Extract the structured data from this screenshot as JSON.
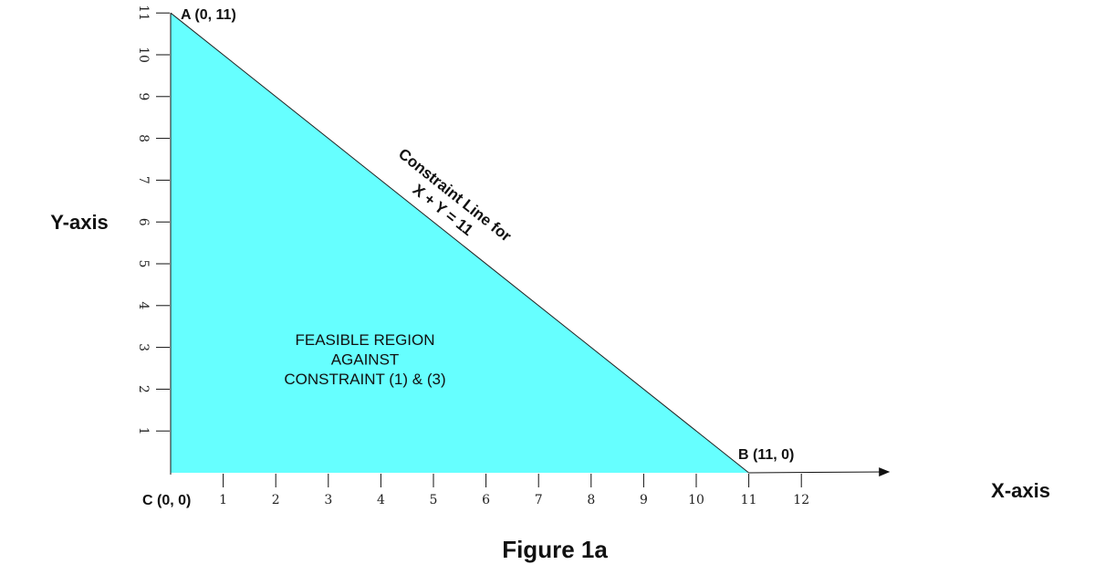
{
  "chart_data": {
    "type": "area",
    "caption": "Figure 1a",
    "xlabel": "X-axis",
    "ylabel": "Y-axis",
    "xlim": [
      0,
      12
    ],
    "ylim": [
      0,
      11
    ],
    "x_ticks": [
      1,
      2,
      3,
      4,
      5,
      6,
      7,
      8,
      9,
      10,
      11,
      12
    ],
    "y_ticks": [
      1,
      2,
      3,
      4,
      5,
      6,
      7,
      8,
      9,
      10,
      11
    ],
    "grid": false,
    "fill_color": "#66FFFF",
    "feasible_region": {
      "vertices": [
        [
          0,
          11
        ],
        [
          11,
          0
        ],
        [
          0,
          0
        ]
      ],
      "label_lines": [
        "FEASIBLE REGION",
        "AGAINST",
        "CONSTRAINT (1) & (3)"
      ]
    },
    "points": [
      {
        "label": "A (0, 11)",
        "x": 0,
        "y": 11
      },
      {
        "label": "B (11, 0)",
        "x": 11,
        "y": 0
      },
      {
        "label": "C (0, 0)",
        "x": 0,
        "y": 0
      }
    ],
    "constraint_line": {
      "from": [
        0,
        11
      ],
      "to": [
        11,
        0
      ],
      "label_lines": [
        "Constraint Line for",
        "X + Y = 11"
      ]
    }
  }
}
